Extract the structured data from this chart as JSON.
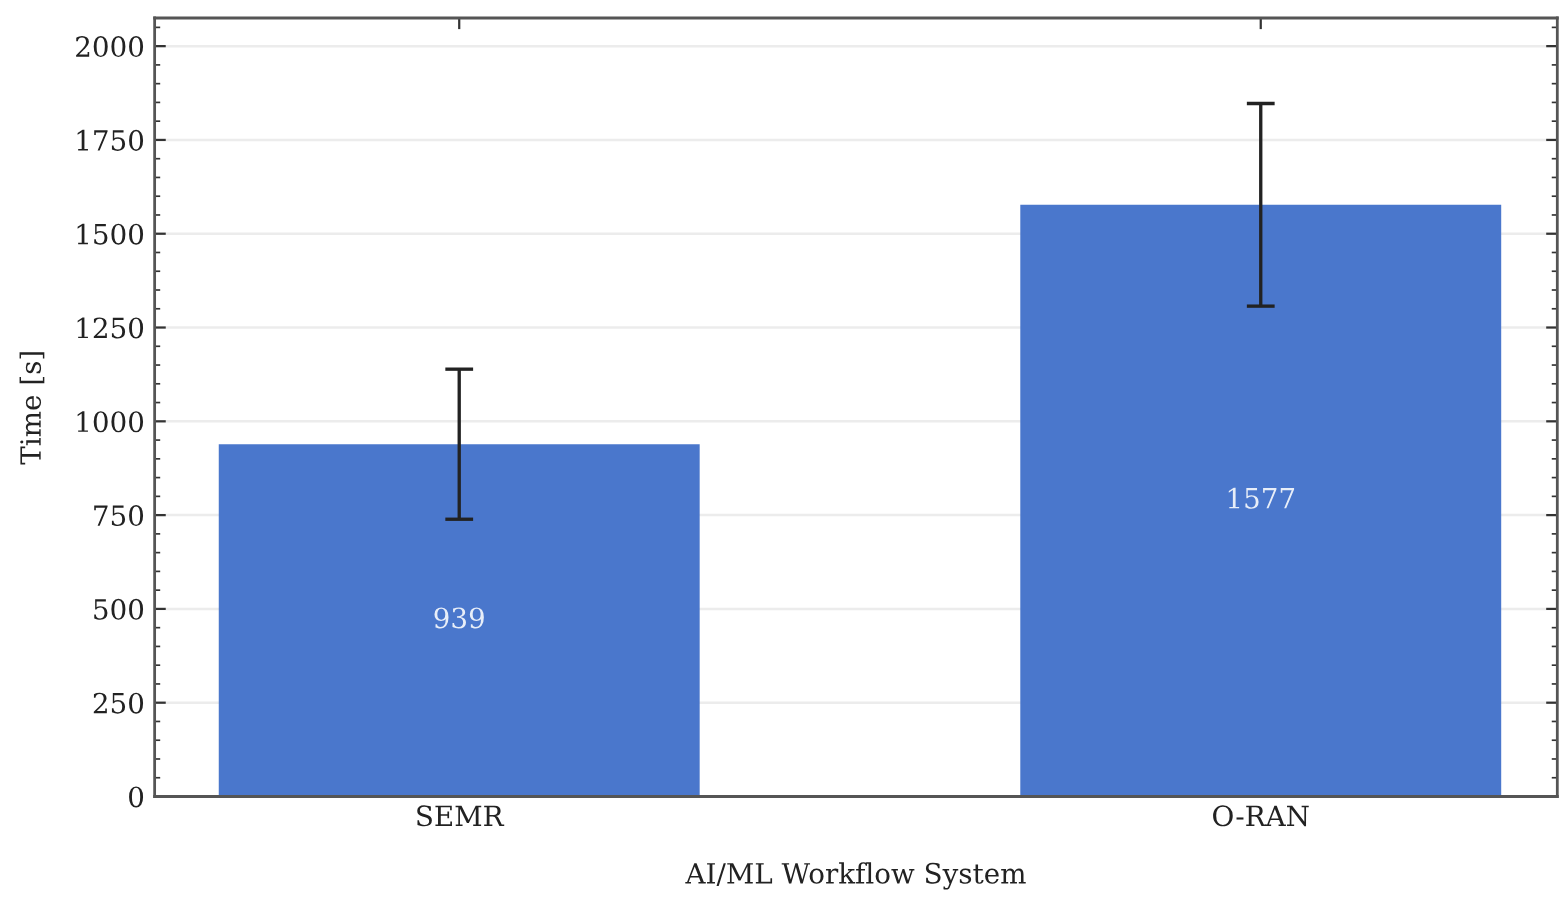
{
  "chart_data": {
    "type": "bar",
    "xlabel": "AI/ML Workflow System",
    "ylabel": "Time [s]",
    "categories": [
      "SEMR",
      "O-RAN"
    ],
    "values": [
      939,
      1577
    ],
    "color": "#4a77cc",
    "errors": [
      200,
      270
    ],
    "ylim": [
      0,
      2075
    ],
    "yticks": [
      0,
      250,
      500,
      750,
      1000,
      1250,
      1500,
      1750,
      2000
    ],
    "grid": "y",
    "data_labels": true
  }
}
